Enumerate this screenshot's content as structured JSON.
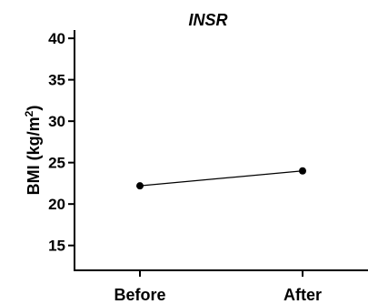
{
  "chart_data": {
    "type": "line",
    "title": "INSR",
    "ylabel": "BMI (kg/m²)",
    "ylabel_main": "BMI (kg/m",
    "ylabel_sup": "2",
    "ylabel_close": ")",
    "xlabel": "",
    "categories": [
      "Before",
      "After"
    ],
    "series": [
      {
        "values": [
          22.2,
          24.0
        ]
      }
    ],
    "ylim": [
      12,
      41
    ],
    "yticks": [
      15,
      20,
      25,
      30,
      35,
      40
    ],
    "grid": false,
    "legend": "none",
    "colors": {
      "line": "#000000",
      "marker": "#000000"
    }
  }
}
